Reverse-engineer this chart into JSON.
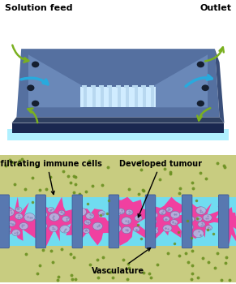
{
  "title_top_left": "Solution feed",
  "title_top_right": "Outlet",
  "label_immune": "Infiltrating immune cells",
  "label_tumour": "Developed tumour",
  "label_vasculature": "Vasculature",
  "chip_top_color": "#5570a0",
  "chip_side_color": "#3a4f7a",
  "chip_front_color": "#2e3f60",
  "chip_channel_color": "#6a88b8",
  "channel_light": "#b8d8f0",
  "channel_bright": "#d0ecff",
  "base_dark": "#1e3060",
  "base_front": "#1a2850",
  "glow_cyan": "#b0f0ff",
  "bg_color": "#ffffff",
  "tissue_bg": "#c8cc80",
  "vasculature_cyan": "#70dcf0",
  "vasculature_pink": "#f040a0",
  "tumour_lavender": "#b0b8e0",
  "pillar_blue": "#5878b0",
  "pillar_dark": "#3a5898",
  "green_arrow": "#7ab020",
  "cyan_arrow": "#28aadd",
  "dot_green": "#6a9020",
  "hole_dark": "#151f30"
}
